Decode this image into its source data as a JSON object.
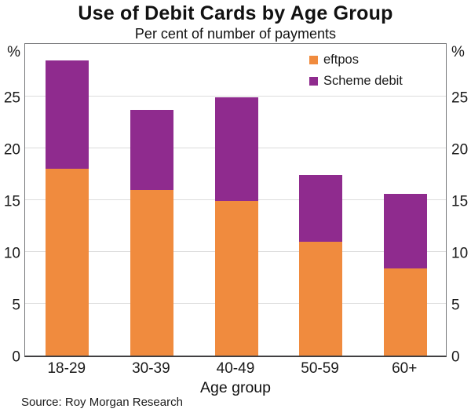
{
  "chart_data": {
    "type": "bar",
    "stacked": true,
    "title": "Use of Debit Cards by Age Group",
    "subtitle": "Per cent of number of payments",
    "categories": [
      "18-29",
      "30-39",
      "40-49",
      "50-59",
      "60+"
    ],
    "series": [
      {
        "name": "eftpos",
        "color": "#F08B3E",
        "values": [
          18.0,
          16.0,
          14.9,
          11.0,
          8.4
        ]
      },
      {
        "name": "Scheme debit",
        "color": "#8F2B8E",
        "values": [
          10.5,
          7.7,
          10.0,
          6.4,
          7.2
        ]
      }
    ],
    "totals": [
      28.5,
      23.7,
      24.9,
      17.4,
      15.6
    ],
    "xlabel": "Age group",
    "ylabel_left": "%",
    "ylabel_right": "%",
    "yticks": [
      0,
      5,
      10,
      15,
      20,
      25
    ],
    "ylim": [
      0,
      30.3
    ],
    "grid": true,
    "legend_position": "top-right",
    "source": "Source: Roy Morgan Research"
  },
  "colors": {
    "eftpos": "#F08B3E",
    "scheme_debit": "#8F2B8E",
    "gridline": "#DCDCDC",
    "axis_border": "#77787B",
    "axis_bottom": "#414042",
    "text": "#1A1A1A"
  }
}
